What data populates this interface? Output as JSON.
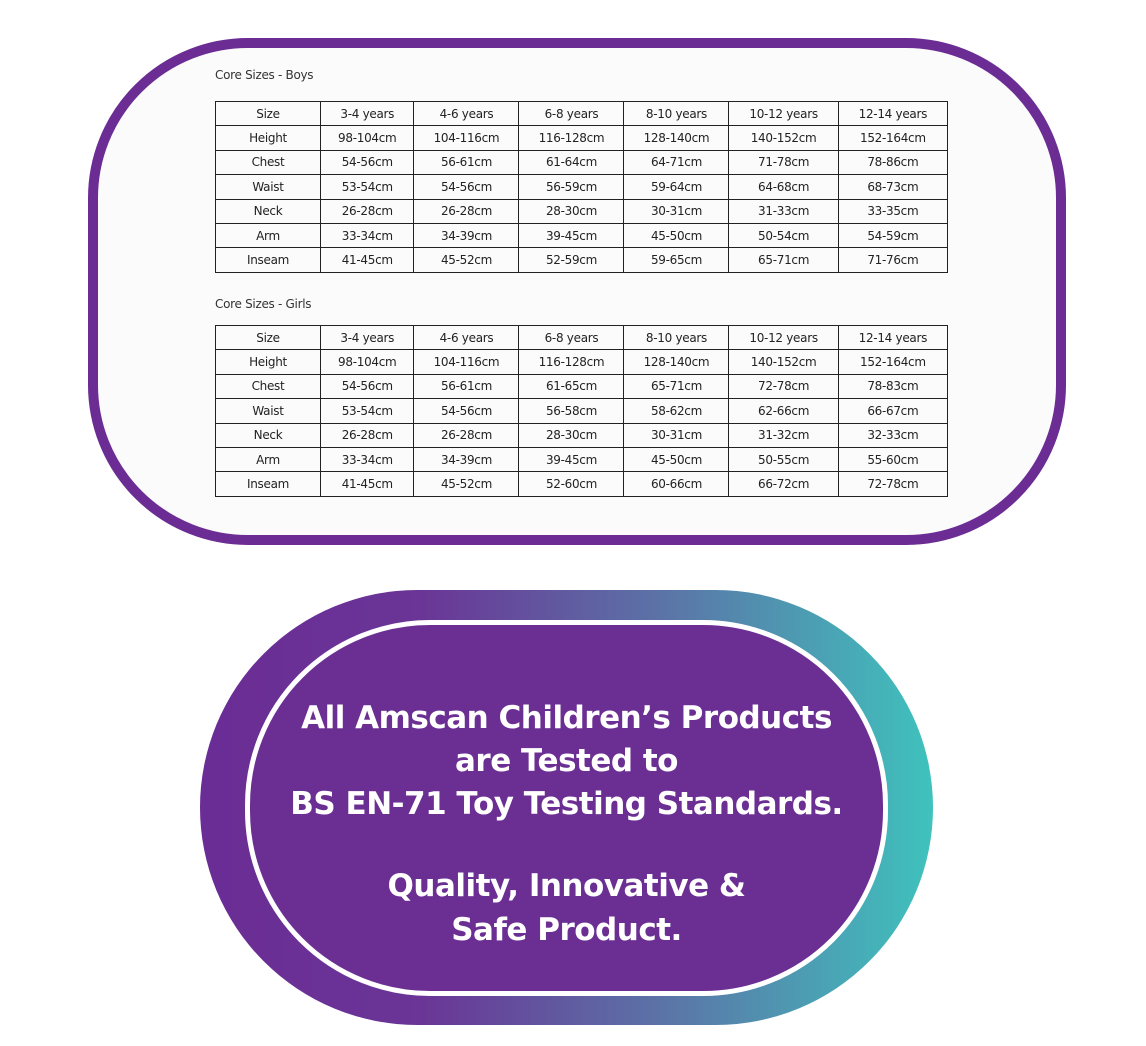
{
  "tables": [
    {
      "title": "Core Sizes - Boys",
      "rows": [
        [
          "Size",
          "3-4 years",
          "4-6 years",
          "6-8 years",
          "8-10 years",
          "10-12 years",
          "12-14 years"
        ],
        [
          "Height",
          "98-104cm",
          "104-116cm",
          "116-128cm",
          "128-140cm",
          "140-152cm",
          "152-164cm"
        ],
        [
          "Chest",
          "54-56cm",
          "56-61cm",
          "61-64cm",
          "64-71cm",
          "71-78cm",
          "78-86cm"
        ],
        [
          "Waist",
          "53-54cm",
          "54-56cm",
          "56-59cm",
          "59-64cm",
          "64-68cm",
          "68-73cm"
        ],
        [
          "Neck",
          "26-28cm",
          "26-28cm",
          "28-30cm",
          "30-31cm",
          "31-33cm",
          "33-35cm"
        ],
        [
          "Arm",
          "33-34cm",
          "34-39cm",
          "39-45cm",
          "45-50cm",
          "50-54cm",
          "54-59cm"
        ],
        [
          "Inseam",
          "41-45cm",
          "45-52cm",
          "52-59cm",
          "59-65cm",
          "65-71cm",
          "71-76cm"
        ]
      ]
    },
    {
      "title": "Core Sizes - Girls",
      "rows": [
        [
          "Size",
          "3-4 years",
          "4-6 years",
          "6-8 years",
          "8-10 years",
          "10-12 years",
          "12-14 years"
        ],
        [
          "Height",
          "98-104cm",
          "104-116cm",
          "116-128cm",
          "128-140cm",
          "140-152cm",
          "152-164cm"
        ],
        [
          "Chest",
          "54-56cm",
          "56-61cm",
          "61-65cm",
          "65-71cm",
          "72-78cm",
          "78-83cm"
        ],
        [
          "Waist",
          "53-54cm",
          "54-56cm",
          "56-58cm",
          "58-62cm",
          "62-66cm",
          "66-67cm"
        ],
        [
          "Neck",
          "26-28cm",
          "26-28cm",
          "28-30cm",
          "30-31cm",
          "31-32cm",
          "32-33cm"
        ],
        [
          "Arm",
          "33-34cm",
          "34-39cm",
          "39-45cm",
          "45-50cm",
          "50-55cm",
          "55-60cm"
        ],
        [
          "Inseam",
          "41-45cm",
          "45-52cm",
          "52-60cm",
          "60-66cm",
          "66-72cm",
          "72-78cm"
        ]
      ]
    }
  ],
  "badge": {
    "lines": [
      "All Amscan Children’s Products",
      "are Tested to",
      "BS EN-71 Toy Testing Standards.",
      "Quality, Innovative &",
      "Safe Product."
    ]
  }
}
